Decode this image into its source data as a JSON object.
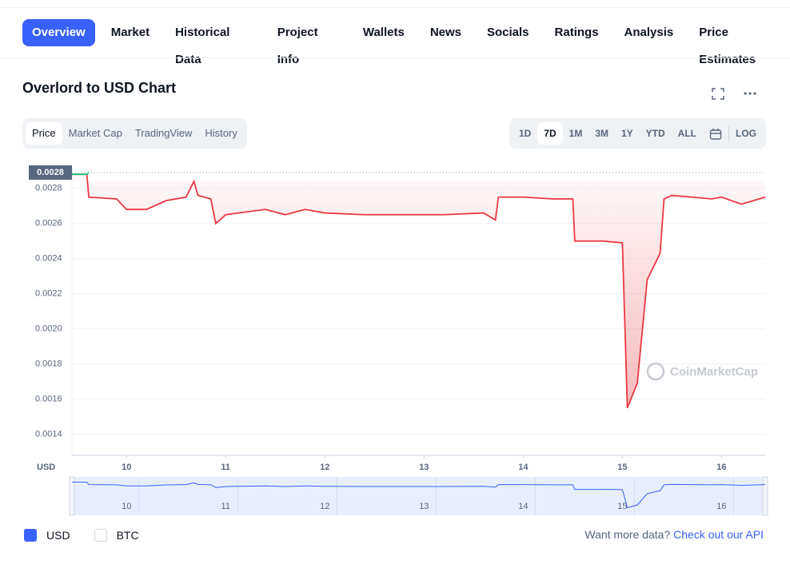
{
  "nav": [
    "Overview",
    "Market",
    "Historical Data",
    "Project Info",
    "Wallets",
    "News",
    "Socials",
    "Ratings",
    "Analysis",
    "Price Estimates"
  ],
  "title": "Overlord to USD Chart",
  "chart_tabs": [
    "Price",
    "Market Cap",
    "TradingView",
    "History"
  ],
  "ranges": [
    "1D",
    "7D",
    "1M",
    "3M",
    "1Y",
    "YTD",
    "ALL"
  ],
  "log_button": "LOG",
  "chart_data": {
    "type": "line",
    "x": [
      9.45,
      9.6,
      9.62,
      9.9,
      10.0,
      10.2,
      10.4,
      10.6,
      10.68,
      10.72,
      10.85,
      10.9,
      11.0,
      11.4,
      11.6,
      11.8,
      12.0,
      12.4,
      12.8,
      13.2,
      13.6,
      13.72,
      13.75,
      14.0,
      14.3,
      14.5,
      14.52,
      14.8,
      15.0,
      15.05,
      15.15,
      15.25,
      15.38,
      15.42,
      15.5,
      15.9,
      16.0,
      16.2,
      16.44
    ],
    "values": [
      0.00288,
      0.00288,
      0.00275,
      0.00274,
      0.00268,
      0.00268,
      0.00273,
      0.00275,
      0.00284,
      0.00276,
      0.00274,
      0.0026,
      0.00265,
      0.00268,
      0.00265,
      0.00268,
      0.00266,
      0.00265,
      0.00265,
      0.00265,
      0.00266,
      0.00262,
      0.00275,
      0.00275,
      0.00274,
      0.00274,
      0.0025,
      0.0025,
      0.00249,
      0.00155,
      0.00169,
      0.00228,
      0.00243,
      0.00274,
      0.00276,
      0.00274,
      0.00275,
      0.00271,
      0.00275
    ],
    "color": "#ea3943",
    "rise_color": "#16c784",
    "current_price": {
      "value": 0.00284,
      "label": "0.0028"
    },
    "xlim": [
      9.45,
      16.44
    ],
    "xticks": [
      10,
      11,
      12,
      13,
      14,
      15,
      16
    ],
    "ylim": [
      0.00128,
      0.00294
    ],
    "yticks": [
      0.0014,
      0.0016,
      0.0018,
      {
        "value": 0.002,
        "label": "0.0020"
      },
      0.0022,
      0.0024,
      0.0026,
      0.0028
    ],
    "grid": true,
    "y_axis_label": "USD",
    "watermark": "CoinMarketCap"
  },
  "currencies": [
    "USD",
    "BTC"
  ],
  "footer": {
    "text": "Want more data?",
    "link": "Check out our API"
  }
}
